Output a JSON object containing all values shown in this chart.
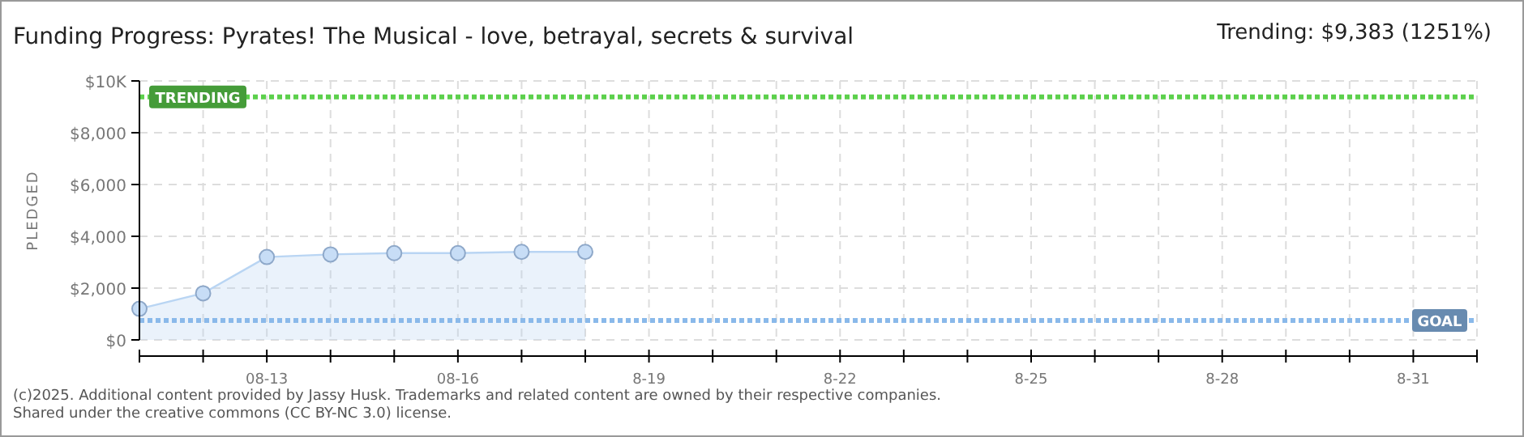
{
  "chart_data": {
    "type": "area",
    "title": "Funding Progress: Pyrates! The Musical - love, betrayal, secrets & survival",
    "subtitle": "Trending: $9,383 (1251%)",
    "ylabel": "PLEDGED",
    "x": [
      "--08-11",
      "--08-12",
      "--08-13",
      "--08-14",
      "--08-15",
      "--08-16",
      "--08-17",
      "--08-18"
    ],
    "series": [
      {
        "color": "#b9d5f3",
        "values": [
          1200,
          1800,
          3200,
          3300,
          3350,
          3350,
          3400,
          3400
        ]
      }
    ],
    "xlim": [
      "--08-11",
      "--09-01"
    ],
    "xticks": [
      {
        "value": "--08-11",
        "label": null
      },
      {
        "value": "--08-12",
        "label": null
      },
      {
        "value": "--08-13",
        "label": "08-13"
      },
      {
        "value": "--08-14",
        "label": null
      },
      {
        "value": "--08-15",
        "label": null
      },
      {
        "value": "--08-16",
        "label": "08-16"
      },
      {
        "value": "--08-17",
        "label": null
      },
      {
        "value": "--08-18",
        "label": null
      },
      {
        "value": "--08-19",
        "label": "8-19"
      },
      {
        "value": "--08-20",
        "label": null
      },
      {
        "value": "--08-21",
        "label": null
      },
      {
        "value": "--08-22",
        "label": "8-22"
      },
      {
        "value": "--08-23",
        "label": null
      },
      {
        "value": "--08-24",
        "label": null
      },
      {
        "value": "--08-25",
        "label": "8-25"
      },
      {
        "value": "--08-26",
        "label": null
      },
      {
        "value": "--08-27",
        "label": null
      },
      {
        "value": "--08-28",
        "label": "8-28"
      },
      {
        "value": "--08-29",
        "label": null
      },
      {
        "value": "--08-30",
        "label": null
      },
      {
        "value": "--08-31",
        "label": "8-31"
      },
      {
        "value": "--09-01",
        "label": null
      }
    ],
    "ylim": [
      0,
      10000
    ],
    "yticks": [
      {
        "value": 0,
        "label": "$0"
      },
      {
        "value": 2000,
        "label": "$2,000"
      },
      {
        "value": 4000,
        "label": "$4,000"
      },
      {
        "value": 6000,
        "label": "$6,000"
      },
      {
        "value": 8000,
        "label": "$8,000"
      },
      {
        "value": 10000,
        "label": "$10K"
      }
    ],
    "grid": true,
    "marker": "circle",
    "ref_lines": [
      {
        "axis": "y",
        "value": 9383,
        "label": "TRENDING",
        "color": "#5cd04c",
        "line_style": "dotted"
      },
      {
        "axis": "y",
        "value": 750,
        "label": "GOAL",
        "color": "#8ab9ea",
        "line_style": "dotted"
      }
    ],
    "annotations": [
      "(c)2025. Additional content provided by Jassy Husk. Trademarks and related content are owned by their respective companies.",
      "Shared under the creative commons (CC BY-NC 3.0) license."
    ]
  }
}
